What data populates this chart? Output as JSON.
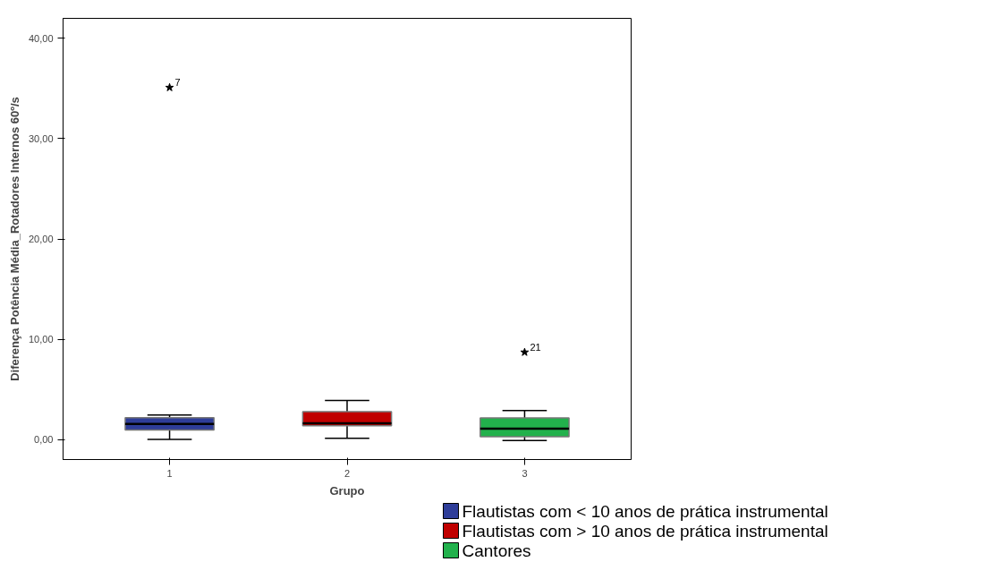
{
  "chart_data": {
    "type": "box",
    "xlabel": "Grupo",
    "ylabel": "Diferença Potência Média_Rotadores Internos 60º/s",
    "categories": [
      "1",
      "2",
      "3"
    ],
    "ylim": [
      -2,
      42
    ],
    "yticks": [
      {
        "value": 0,
        "label": "0,00"
      },
      {
        "value": 10,
        "label": "10,00"
      },
      {
        "value": 20,
        "label": "20,00"
      },
      {
        "value": 30,
        "label": "30,00"
      },
      {
        "value": 40,
        "label": "40,00"
      }
    ],
    "grid": false,
    "legend": "bottom right",
    "marker": "star",
    "series": [
      {
        "name": "Flautistas com < 10 anos de prática instrumental",
        "color": "#2e3d99",
        "x": [
          "1"
        ],
        "boxes": [
          {
            "low": 0.0,
            "q1": 0.95,
            "median": 1.55,
            "q3": 2.17,
            "high": 2.44,
            "outliers": [
              35.1
            ]
          }
        ]
      },
      {
        "name": "Flautistas com > 10 anos de prática instrumental",
        "color": "#c00000",
        "x": [
          "2"
        ],
        "boxes": [
          {
            "low": 0.12,
            "q1": 1.37,
            "median": 1.61,
            "q3": 2.77,
            "high": 3.9
          }
        ]
      },
      {
        "name": "Cantores",
        "color": "#22b14c",
        "x": [
          "3"
        ],
        "boxes": [
          {
            "low": -0.1,
            "q1": 0.27,
            "median": 1.07,
            "q3": 2.14,
            "high": 2.89,
            "outliers": [
              8.7
            ]
          }
        ]
      }
    ],
    "annotations": [
      "7",
      "21"
    ]
  }
}
